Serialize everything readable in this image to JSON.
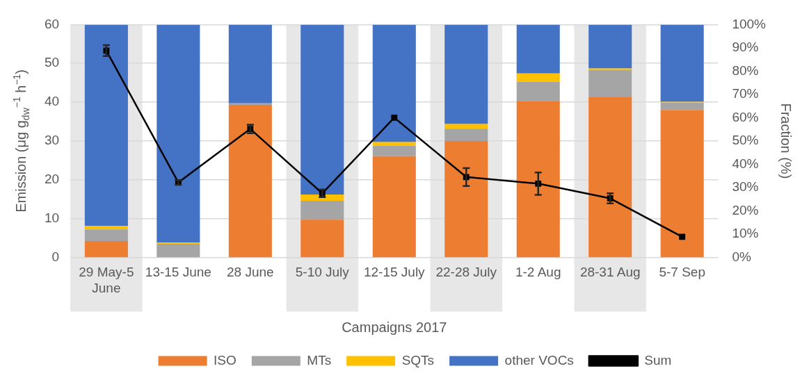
{
  "chart_data": {
    "type": "bar",
    "stacked": true,
    "xlabel": "Campaigns 2017",
    "ylabel": "Emission (μg g$_{dw}$$^{−1}$ h$^{−1}$)",
    "y2label": "Fraction (%)",
    "categories": [
      "29 May-5 June",
      "13-15 June",
      "28 June",
      "5-10 July",
      "12-15 July",
      "22-28 July",
      "1-2 Aug",
      "28-31 Aug",
      "5-7 Sep"
    ],
    "series": [
      {
        "name": "ISO",
        "color": "#ed7d31",
        "axis": "y2",
        "values": [
          7,
          0,
          65.5,
          16.2,
          43.5,
          50,
          67,
          68.8,
          63.3
        ]
      },
      {
        "name": "MTs",
        "color": "#a5a5a5",
        "axis": "y2",
        "values": [
          5,
          5.8,
          0.7,
          8.1,
          4.5,
          5.3,
          8.5,
          11.7,
          3.2
        ]
      },
      {
        "name": "SQTs",
        "color": "#ffc000",
        "axis": "y2",
        "values": [
          1.5,
          0.5,
          0,
          2.7,
          1.5,
          2,
          3.5,
          0.7,
          0.3
        ]
      },
      {
        "name": "other VOCs",
        "color": "#4472c4",
        "axis": "y2",
        "values": [
          86.5,
          93.7,
          33.8,
          73,
          50.5,
          42.7,
          21,
          18.8,
          33.2
        ]
      },
      {
        "name": "Sum",
        "type": "line",
        "color": "#000000",
        "axis": "y",
        "marker": "square",
        "values": [
          53.3,
          19.3,
          33.1,
          16.5,
          36,
          20.7,
          19,
          15.2,
          5.3
        ],
        "errors": [
          1.4,
          0.6,
          1.1,
          1,
          null,
          2.3,
          2.9,
          1.3,
          null
        ]
      }
    ],
    "ylim": [
      0,
      60
    ],
    "yticks": [
      0,
      10,
      20,
      30,
      40,
      50,
      60
    ],
    "y2lim": [
      0,
      100
    ],
    "y2ticks": [
      {
        "value": 0,
        "label": "0%"
      },
      {
        "value": 10,
        "label": "10%"
      },
      {
        "value": 20,
        "label": "20%"
      },
      {
        "value": 30,
        "label": "30%"
      },
      {
        "value": 40,
        "label": "40%"
      },
      {
        "value": 50,
        "label": "50%"
      },
      {
        "value": 60,
        "label": "60%"
      },
      {
        "value": 70,
        "label": "70%"
      },
      {
        "value": 80,
        "label": "80%"
      },
      {
        "value": 90,
        "label": "90%"
      },
      {
        "value": 100,
        "label": "100%"
      }
    ],
    "bands": [
      {
        "axis": "x",
        "from": "29 May-5 June",
        "to": "29 May-5 June",
        "color": "#e7e7e7"
      },
      {
        "axis": "x",
        "from": "5-10 July",
        "to": "5-10 July",
        "color": "#e7e7e7"
      },
      {
        "axis": "x",
        "from": "22-28 July",
        "to": "22-28 July",
        "color": "#e7e7e7"
      },
      {
        "axis": "x",
        "from": "28-31 Aug",
        "to": "28-31 Aug",
        "color": "#e7e7e7"
      }
    ],
    "grid": "y",
    "legend": "bottom"
  }
}
